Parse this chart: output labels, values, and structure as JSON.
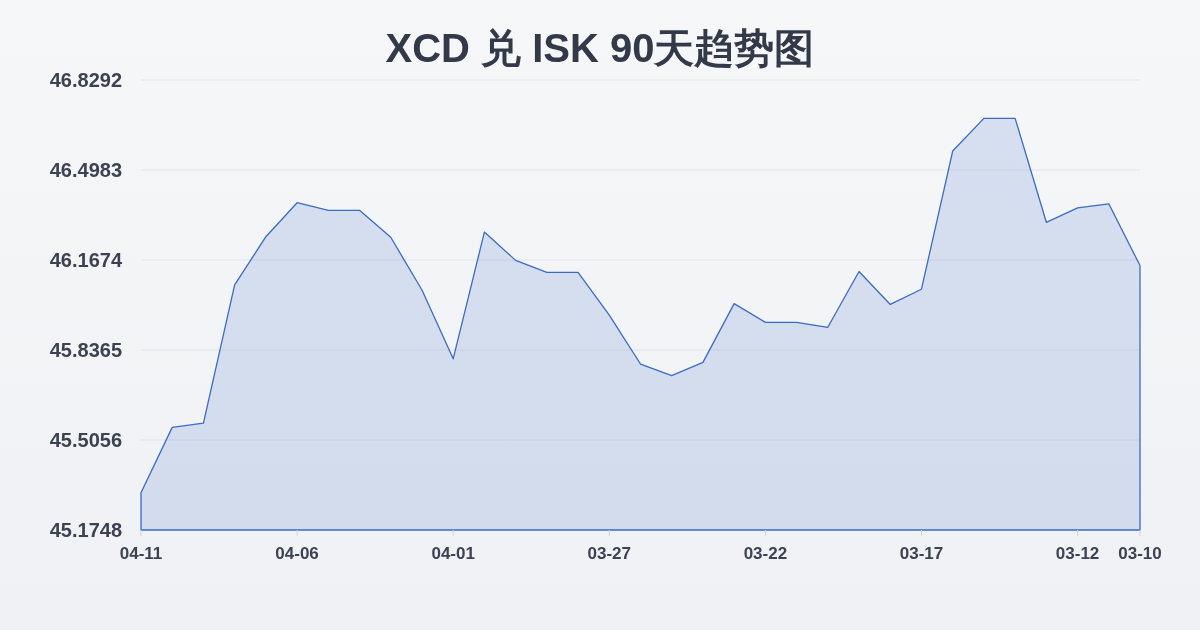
{
  "chart_data": {
    "type": "area",
    "title": "XCD 兑 ISK 90天趋势图",
    "categories": [
      "04-11",
      null,
      null,
      null,
      null,
      "04-06",
      null,
      null,
      null,
      null,
      "04-01",
      null,
      null,
      null,
      null,
      "03-27",
      null,
      null,
      null,
      null,
      "03-22",
      null,
      null,
      null,
      null,
      "03-17",
      null,
      null,
      null,
      null,
      "03-12",
      null,
      "03-10"
    ],
    "series": [
      {
        "color": "#3a6bc9",
        "values": [
          45.312,
          45.552,
          45.568,
          46.076,
          46.253,
          46.378,
          46.35,
          46.35,
          46.251,
          46.057,
          45.804,
          46.27,
          46.166,
          46.122,
          46.122,
          45.965,
          45.785,
          45.742,
          45.791,
          46.007,
          45.938,
          45.938,
          45.92,
          46.125,
          46.004,
          46.06,
          46.568,
          46.688,
          46.688,
          46.306,
          46.359,
          46.374,
          46.147
        ]
      }
    ],
    "ylim": [
      45.1748,
      46.8292
    ],
    "yticks": [
      45.1748,
      45.5056,
      45.8365,
      46.1674,
      46.4983,
      46.8292
    ],
    "grid": "y"
  }
}
